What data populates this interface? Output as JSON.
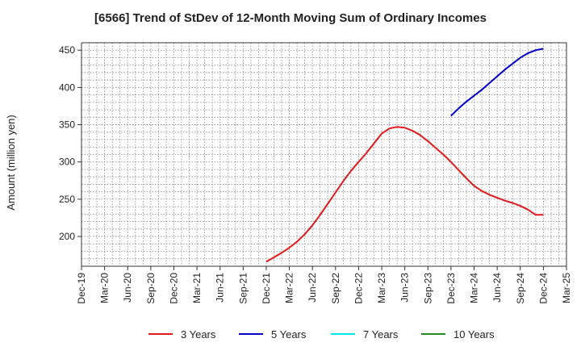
{
  "chart_data": {
    "type": "line",
    "title": "[6566]  Trend of StDev of 12-Month Moving Sum of Ordinary Incomes",
    "xlabel": "",
    "ylabel": "Amount (million yen)",
    "x_ticks": [
      "Dec-19",
      "Mar-20",
      "Jun-20",
      "Sep-20",
      "Dec-20",
      "Mar-21",
      "Jun-21",
      "Sep-21",
      "Dec-21",
      "Mar-22",
      "Jun-22",
      "Sep-22",
      "Dec-22",
      "Mar-23",
      "Jun-23",
      "Sep-23",
      "Dec-23",
      "Mar-24",
      "Jun-24",
      "Sep-24",
      "Dec-24",
      "Mar-25"
    ],
    "y_ticks": [
      200,
      250,
      300,
      350,
      400,
      450
    ],
    "ylim": [
      160,
      460
    ],
    "grid": true,
    "legend_position": "bottom",
    "series": [
      {
        "name": "3 Years",
        "color": "#e31a1c",
        "x": [
          "Dec-21",
          "Jan-22",
          "Feb-22",
          "Mar-22",
          "Apr-22",
          "May-22",
          "Jun-22",
          "Jul-22",
          "Aug-22",
          "Sep-22",
          "Oct-22",
          "Nov-22",
          "Dec-22",
          "Jan-23",
          "Feb-23",
          "Mar-23",
          "Apr-23",
          "May-23",
          "Jun-23",
          "Jul-23",
          "Aug-23",
          "Sep-23",
          "Oct-23",
          "Nov-23",
          "Dec-23",
          "Jan-24",
          "Feb-24",
          "Mar-24",
          "Apr-24",
          "May-24",
          "Jun-24",
          "Jul-24",
          "Aug-24",
          "Sep-24",
          "Oct-24",
          "Nov-24",
          "Dec-24"
        ],
        "values": [
          166,
          172,
          178,
          185,
          193,
          203,
          215,
          229,
          244,
          259,
          274,
          288,
          300,
          312,
          325,
          338,
          345,
          347,
          346,
          342,
          336,
          328,
          319,
          310,
          300,
          289,
          278,
          268,
          261,
          256,
          252,
          248,
          245,
          241,
          236,
          229,
          229
        ]
      },
      {
        "name": "5 Years",
        "color": "#0000cc",
        "x": [
          "Dec-23",
          "Jan-24",
          "Feb-24",
          "Mar-24",
          "Apr-24",
          "May-24",
          "Jun-24",
          "Jul-24",
          "Aug-24",
          "Sep-24",
          "Oct-24",
          "Nov-24",
          "Dec-24"
        ],
        "values": [
          362,
          372,
          381,
          389,
          397,
          406,
          415,
          424,
          432,
          440,
          446,
          450,
          452
        ]
      },
      {
        "name": "7 Years",
        "color": "#00e5ee",
        "x": [],
        "values": []
      },
      {
        "name": "10 Years",
        "color": "#228b22",
        "x": [],
        "values": []
      }
    ]
  }
}
